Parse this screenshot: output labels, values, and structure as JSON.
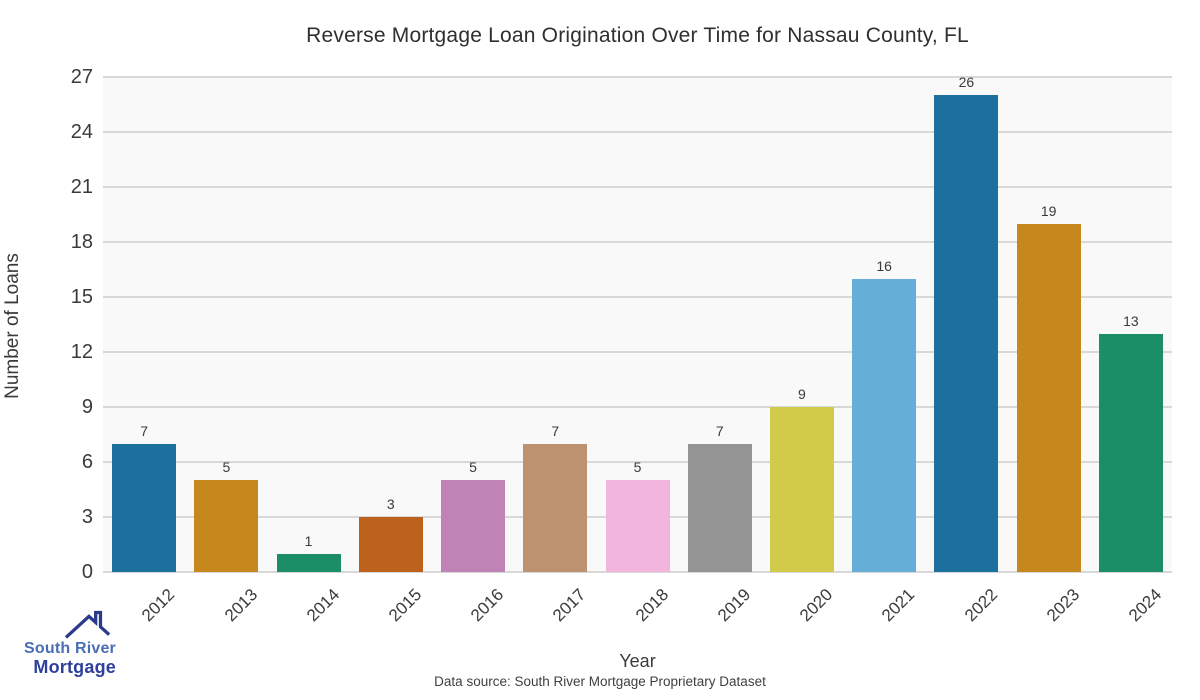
{
  "chart_data": {
    "type": "bar",
    "title": "Reverse Mortgage Loan Origination Over Time for Nassau County, FL",
    "xlabel": "Year",
    "ylabel": "Number of Loans",
    "categories": [
      "2012",
      "2013",
      "2014",
      "2015",
      "2016",
      "2017",
      "2018",
      "2019",
      "2020",
      "2021",
      "2022",
      "2023",
      "2024"
    ],
    "values": [
      7,
      5,
      1,
      3,
      5,
      7,
      5,
      7,
      9,
      16,
      26,
      19,
      13
    ],
    "bar_colors": [
      "#1d6f9e",
      "#c6881d",
      "#1c8e67",
      "#bd621d",
      "#c083b5",
      "#bd9270",
      "#f2b5dd",
      "#949494",
      "#d2cb4a",
      "#65aed8",
      "#1d6f9e",
      "#c6881d",
      "#1c8e67"
    ],
    "ylim": [
      0,
      27
    ],
    "yticks": [
      0,
      3,
      6,
      9,
      12,
      15,
      18,
      21,
      24,
      27
    ],
    "grid": "horizontal",
    "legend": "none",
    "value_labels": true
  },
  "colors": {
    "plot_background": "#f9f9f9",
    "gridline": "#d8d8d8",
    "text": "#3a3a3a"
  },
  "logo": {
    "line1": "South River",
    "line2": "Mortgage",
    "line1_color": "#4a6db4",
    "line2_color": "#2f3f9e",
    "roof_color": "#2c3a8c"
  },
  "footer": {
    "text": "Data source: South River Mortgage Proprietary Dataset"
  }
}
